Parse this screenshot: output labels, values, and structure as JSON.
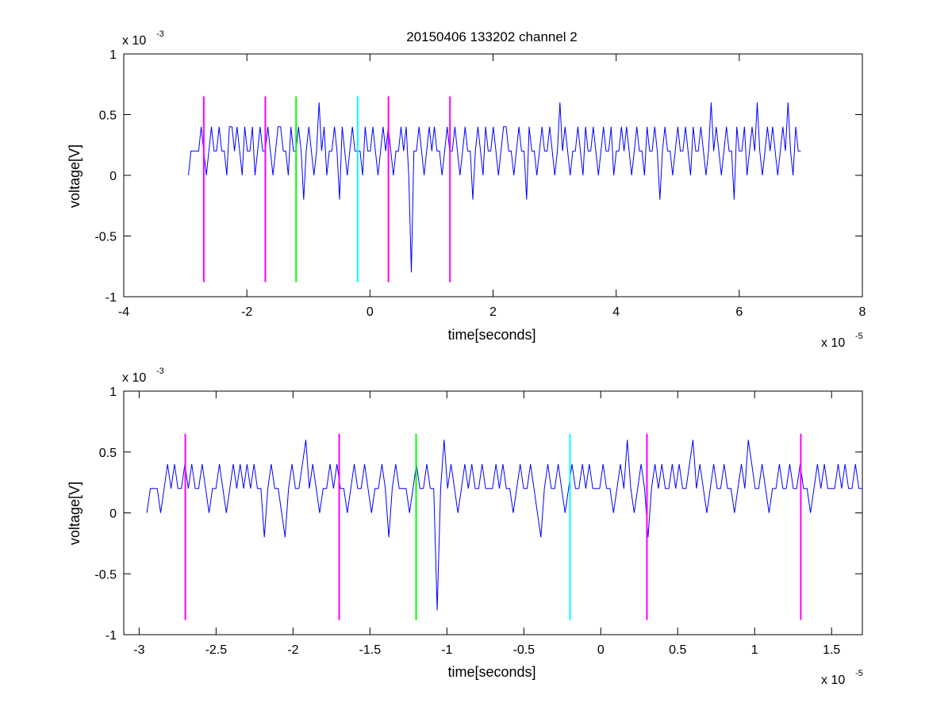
{
  "chart_data": [
    {
      "type": "line",
      "title": "20150406 133202 channel 2",
      "xlabel": "time[seconds]",
      "ylabel": "voltage[V]",
      "x_multiplier": "x 10",
      "x_exponent": "-5",
      "y_multiplier": "x 10",
      "y_exponent": "-3",
      "xlim": [
        -4,
        8
      ],
      "ylim": [
        -1,
        1
      ],
      "x_ticks": [
        -4,
        -2,
        0,
        2,
        4,
        6,
        8
      ],
      "x_tick_labels": [
        "-4",
        "-2",
        "0",
        "2",
        "4",
        "6",
        "8"
      ],
      "y_ticks": [
        -1,
        -0.5,
        0,
        0.5,
        1
      ],
      "y_tick_labels": [
        "-1",
        "-0.5",
        "0",
        "0.5",
        "1"
      ],
      "grid": false,
      "series": [
        {
          "color": "#0000ff",
          "x_start": -2.95,
          "x_end": 7.0,
          "values": [
            0.0,
            0.2,
            0.2,
            0.2,
            0.2,
            0.4,
            0.2,
            0.0,
            0.2,
            0.4,
            0.2,
            0.2,
            0.4,
            0.2,
            0.2,
            0.0,
            0.4,
            0.4,
            0.2,
            0.4,
            0.2,
            0.0,
            0.4,
            0.2,
            0.2,
            0.4,
            0.0,
            0.2,
            0.4,
            0.2,
            0.2,
            0.4,
            0.2,
            0.0,
            0.2,
            0.4,
            0.4,
            0.2,
            0.2,
            0.0,
            0.4,
            0.2,
            0.2,
            0.4,
            0.2,
            -0.2,
            0.2,
            0.4,
            0.2,
            0.0,
            0.2,
            0.6,
            0.2,
            0.4,
            0.0,
            0.2,
            0.2,
            0.4,
            0.2,
            -0.2,
            0.4,
            0.2,
            0.0,
            0.2,
            0.4,
            0.2,
            0.2,
            0.2,
            0.0,
            0.4,
            0.2,
            0.2,
            0.4,
            0.2,
            0.0,
            0.2,
            0.4,
            0.2,
            0.4,
            0.2,
            0.0,
            0.2,
            0.2,
            0.4,
            0.2,
            0.4,
            0.0,
            -0.8,
            0.2,
            0.2,
            0.4,
            0.2,
            0.0,
            0.2,
            0.4,
            0.2,
            0.4,
            0.2,
            0.2,
            0.0,
            0.2,
            0.4,
            0.2,
            0.2,
            0.4,
            0.2,
            0.0,
            0.2,
            0.4,
            0.2,
            0.2,
            -0.2,
            0.2,
            0.4,
            0.2,
            0.0,
            0.4,
            0.2,
            0.2,
            0.4,
            0.2,
            0.0,
            0.2,
            0.4,
            0.4,
            0.2,
            0.2,
            0.0,
            0.2,
            0.4,
            0.2,
            0.2,
            -0.2,
            0.4,
            0.2,
            0.2,
            0.0,
            0.2,
            0.4,
            0.2,
            0.2,
            0.4,
            0.2,
            0.0,
            0.2,
            0.6,
            0.2,
            0.4,
            0.2,
            0.0,
            0.2,
            0.2,
            0.4,
            0.2,
            0.0,
            0.4,
            0.2,
            0.2,
            0.4,
            0.2,
            0.0,
            0.2,
            0.4,
            0.2,
            0.2,
            0.4,
            0.0,
            0.2,
            0.2,
            0.4,
            0.2,
            0.4,
            0.2,
            0.0,
            0.2,
            0.4,
            0.2,
            0.2,
            0.0,
            0.4,
            0.2,
            0.2,
            0.4,
            0.2,
            -0.2,
            0.2,
            0.4,
            0.2,
            0.2,
            0.0,
            0.2,
            0.4,
            0.2,
            0.2,
            0.4,
            0.2,
            0.0,
            0.4,
            0.2,
            0.2,
            0.4,
            0.2,
            0.0,
            0.2,
            0.6,
            0.2,
            0.4,
            0.2,
            0.0,
            0.2,
            0.4,
            0.2,
            0.2,
            -0.2,
            0.4,
            0.2,
            0.2,
            0.4,
            0.0,
            0.2,
            0.4,
            0.2,
            0.6,
            0.2,
            0.0,
            0.2,
            0.4,
            0.2,
            0.4,
            0.2,
            0.0,
            0.2,
            0.4,
            0.2,
            0.6,
            0.2,
            0.0,
            0.4,
            0.2,
            0.2
          ]
        },
        {
          "color": "#ff00ff",
          "name": "",
          "vertical_lines_x": [
            -2.7,
            -1.7,
            0.3,
            1.3
          ],
          "y_range": [
            -0.88,
            0.65
          ]
        },
        {
          "color": "#00ff00",
          "vertical_lines_x": [
            -1.2
          ],
          "y_range": [
            -0.88,
            0.65
          ]
        },
        {
          "color": "#00ffff",
          "vertical_lines_x": [
            -0.2
          ],
          "y_range": [
            -0.88,
            0.65
          ]
        }
      ]
    },
    {
      "type": "line",
      "xlabel": "time[seconds]",
      "ylabel": "voltage[V]",
      "x_multiplier": "x 10",
      "x_exponent": "-5",
      "y_multiplier": "x 10",
      "y_exponent": "-3",
      "xlim": [
        -3.1,
        1.7
      ],
      "ylim": [
        -1,
        1
      ],
      "x_ticks": [
        -3,
        -2.5,
        -2,
        -1.5,
        -1,
        -0.5,
        0,
        0.5,
        1,
        1.5
      ],
      "x_tick_labels": [
        "-3",
        "-2.5",
        "-2",
        "-1.5",
        "-1",
        "-0.5",
        "0",
        "0.5",
        "1",
        "1.5"
      ],
      "y_ticks": [
        -1,
        -0.5,
        0,
        0.5,
        1
      ],
      "y_tick_labels": [
        "-1",
        "-0.5",
        "0",
        "0.5",
        "1"
      ],
      "grid": false,
      "series": [
        {
          "color": "#0000ff",
          "x_start": -2.95,
          "x_end": 1.7,
          "values": [
            0.0,
            0.2,
            0.2,
            0.2,
            0.0,
            0.2,
            0.4,
            0.2,
            0.4,
            0.2,
            0.2,
            0.4,
            0.2,
            0.4,
            0.2,
            0.2,
            0.4,
            0.2,
            0.0,
            0.2,
            0.2,
            0.4,
            0.2,
            0.0,
            0.2,
            0.4,
            0.2,
            0.4,
            0.2,
            0.4,
            0.2,
            0.4,
            0.2,
            0.2,
            -0.2,
            0.2,
            0.4,
            0.2,
            0.2,
            0.0,
            -0.2,
            0.2,
            0.4,
            0.2,
            0.2,
            0.4,
            0.6,
            0.2,
            0.4,
            0.2,
            0.0,
            0.2,
            0.2,
            0.4,
            0.2,
            0.4,
            0.2,
            0.2,
            0.0,
            0.2,
            0.4,
            0.2,
            0.2,
            0.4,
            0.2,
            0.0,
            0.2,
            0.2,
            0.4,
            0.2,
            -0.2,
            0.2,
            0.4,
            0.2,
            0.2,
            0.2,
            0.0,
            0.2,
            0.4,
            0.2,
            0.2,
            0.4,
            0.2,
            0.2,
            -0.8,
            0.2,
            0.6,
            0.2,
            0.4,
            0.2,
            0.0,
            0.2,
            0.4,
            0.2,
            0.4,
            0.2,
            0.2,
            0.4,
            0.2,
            0.2,
            0.2,
            0.4,
            0.2,
            0.4,
            0.2,
            0.2,
            0.0,
            0.2,
            0.4,
            0.2,
            0.2,
            0.4,
            0.2,
            0.0,
            -0.2,
            0.2,
            0.4,
            0.2,
            0.2,
            0.4,
            0.2,
            0.0,
            0.2,
            0.4,
            0.2,
            0.2,
            0.4,
            0.2,
            0.4,
            0.2,
            0.2,
            0.2,
            0.4,
            0.2,
            0.2,
            0.0,
            0.2,
            0.4,
            0.2,
            0.6,
            0.2,
            0.0,
            0.2,
            0.4,
            0.2,
            -0.2,
            0.2,
            0.4,
            0.2,
            0.4,
            0.2,
            0.2,
            0.4,
            0.2,
            0.4,
            0.2,
            0.2,
            0.4,
            0.6,
            0.2,
            0.4,
            0.2,
            0.0,
            0.2,
            0.4,
            0.2,
            0.2,
            0.4,
            0.2,
            0.2,
            0.0,
            0.2,
            0.4,
            0.2,
            0.6,
            0.4,
            0.2,
            0.2,
            0.4,
            0.2,
            0.0,
            0.2,
            0.2,
            0.4,
            0.2,
            0.2,
            0.4,
            0.2,
            0.2,
            0.4,
            0.2,
            0.2,
            0.0,
            0.2,
            0.4,
            0.2,
            0.4,
            0.2,
            0.2,
            0.2,
            0.4,
            0.2,
            0.4,
            0.2,
            0.2,
            0.4,
            0.2,
            0.2
          ]
        },
        {
          "color": "#ff00ff",
          "vertical_lines_x": [
            -2.7,
            -1.7,
            0.3,
            1.3
          ],
          "y_range": [
            -0.88,
            0.65
          ]
        },
        {
          "color": "#00ff00",
          "vertical_lines_x": [
            -1.2
          ],
          "y_range": [
            -0.88,
            0.65
          ]
        },
        {
          "color": "#00ffff",
          "vertical_lines_x": [
            -0.2
          ],
          "y_range": [
            -0.88,
            0.65
          ]
        }
      ]
    }
  ]
}
